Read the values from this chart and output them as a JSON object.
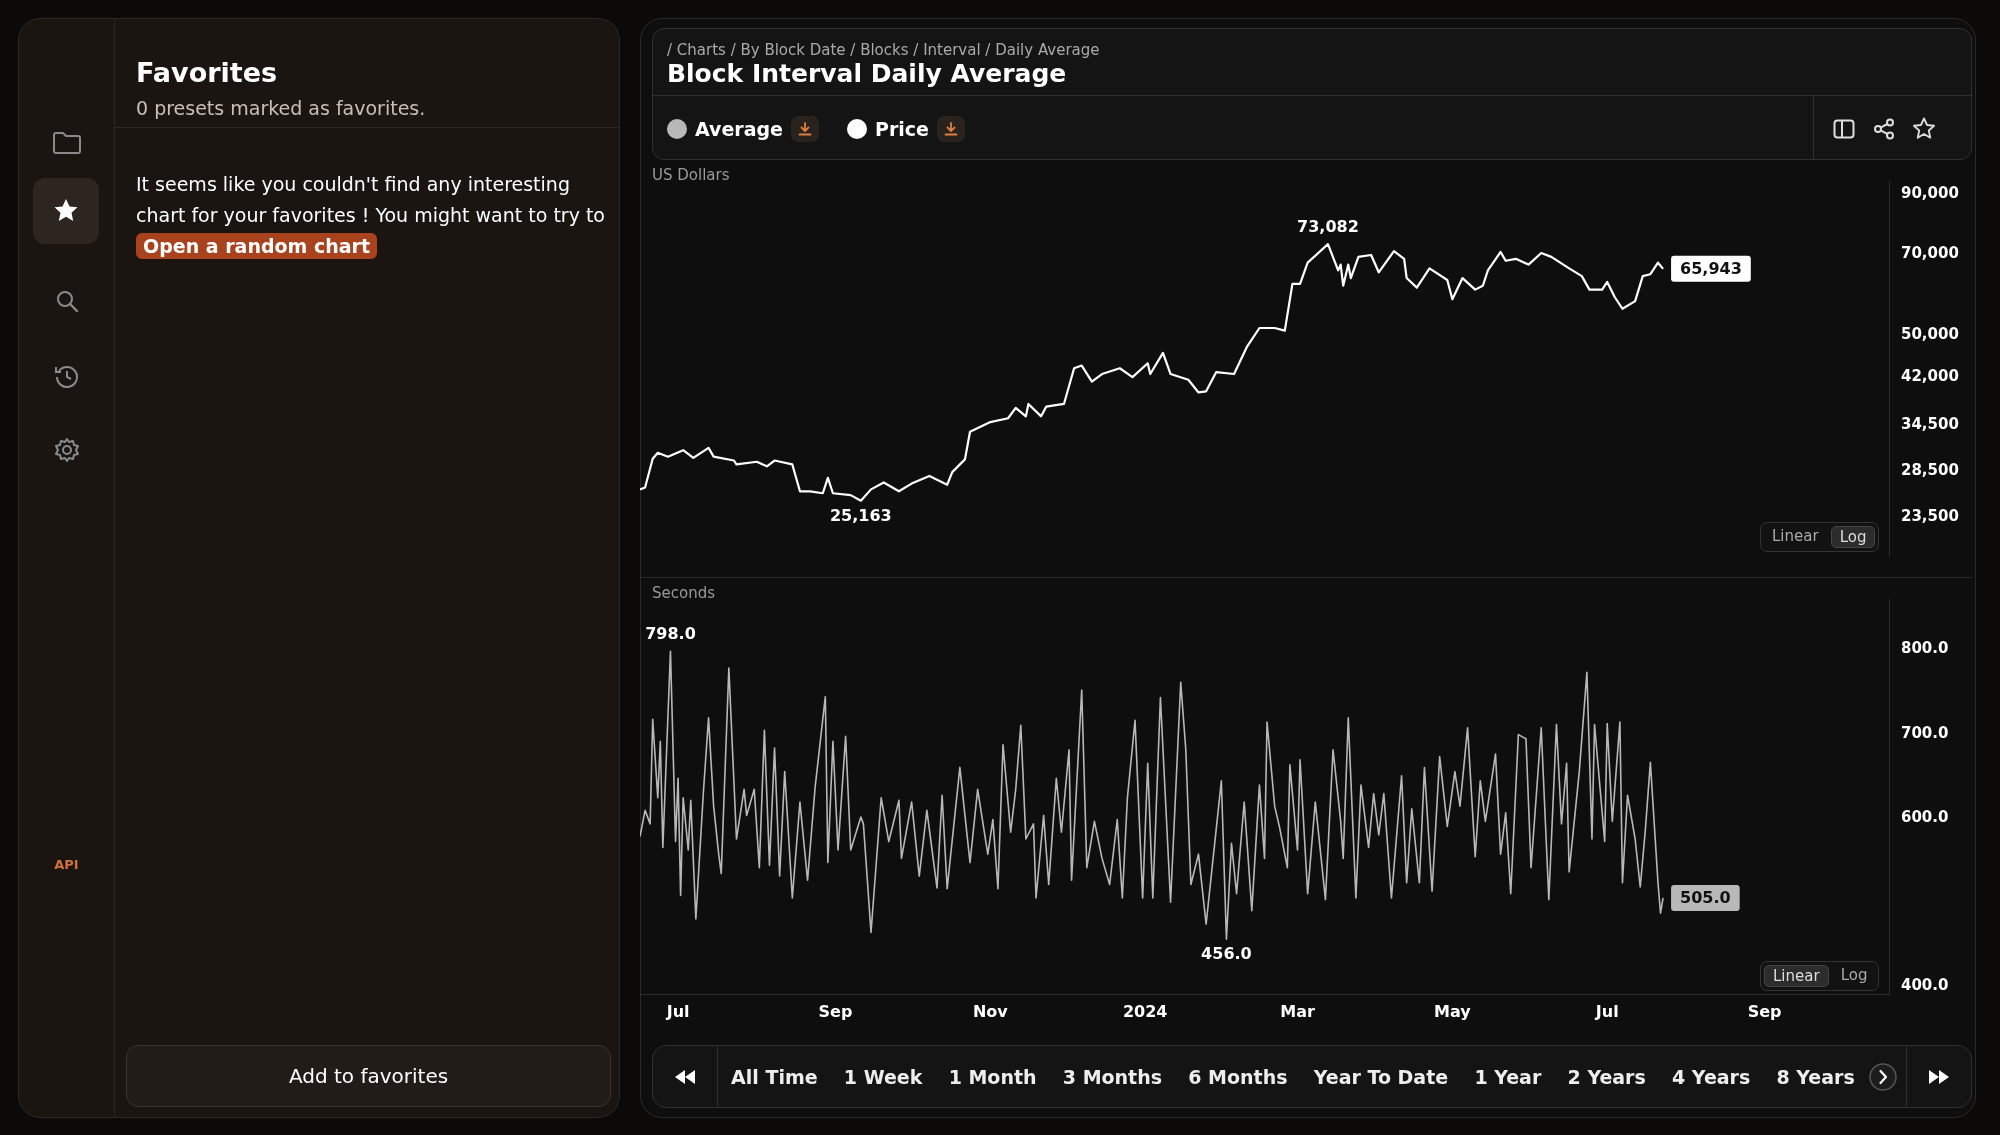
{
  "chart_data": [
    {
      "type": "line",
      "title": "Block Interval Daily Average",
      "subtitle": "/ Charts / By Block Date / Blocks / Interval / Daily Average",
      "ylabel": "US Dollars",
      "legend": "top",
      "log": true,
      "tick_labels": "y",
      "xlim": [
        "2023-06-16",
        "2024-10-20"
      ],
      "ylim": [
        20000,
        95000
      ],
      "yticks": [
        {
          "value": 23500,
          "label": "23,500"
        },
        {
          "value": 28500,
          "label": "28,500"
        },
        {
          "value": 34500,
          "label": "34,500"
        },
        {
          "value": 42000,
          "label": "42,000"
        },
        {
          "value": 50000,
          "label": "50,000"
        },
        {
          "value": 70000,
          "label": "70,000"
        },
        {
          "value": 90000,
          "label": "90,000"
        }
      ],
      "x": [
        "2023-06-16",
        "2023-06-18",
        "2023-06-21",
        "2023-06-23",
        "2023-06-27",
        "2023-07-03",
        "2023-07-07",
        "2023-07-13",
        "2023-07-15",
        "2023-07-23",
        "2023-07-24",
        "2023-08-01",
        "2023-08-05",
        "2023-08-08",
        "2023-08-15",
        "2023-08-18",
        "2023-08-22",
        "2023-08-27",
        "2023-08-29",
        "2023-08-31",
        "2023-09-07",
        "2023-09-11",
        "2023-09-15",
        "2023-09-20",
        "2023-09-26",
        "2023-10-01",
        "2023-10-08",
        "2023-10-15",
        "2023-10-17",
        "2023-10-22",
        "2023-10-24",
        "2023-11-01",
        "2023-11-08",
        "2023-11-11",
        "2023-11-15",
        "2023-11-16",
        "2023-11-21",
        "2023-11-23",
        "2023-11-30",
        "2023-12-04",
        "2023-12-07",
        "2023-12-11",
        "2023-12-15",
        "2023-12-22",
        "2023-12-27",
        "2024-01-02",
        "2024-01-03",
        "2024-01-08",
        "2024-01-11",
        "2024-01-18",
        "2024-01-22",
        "2024-01-25",
        "2024-01-29",
        "2024-02-05",
        "2024-02-10",
        "2024-02-15",
        "2024-02-21",
        "2024-02-25",
        "2024-02-28",
        "2024-03-02",
        "2024-03-05",
        "2024-03-13",
        "2024-03-17",
        "2024-03-18",
        "2024-03-19",
        "2024-03-21",
        "2024-03-22",
        "2024-03-25",
        "2024-03-30",
        "2024-04-02",
        "2024-04-08",
        "2024-04-12",
        "2024-04-13",
        "2024-04-17",
        "2024-04-22",
        "2024-04-29",
        "2024-05-01",
        "2024-05-05",
        "2024-05-10",
        "2024-05-13",
        "2024-05-15",
        "2024-05-20",
        "2024-05-22",
        "2024-05-26",
        "2024-05-31",
        "2024-06-05",
        "2024-06-09",
        "2024-06-16",
        "2024-06-21",
        "2024-06-24",
        "2024-06-29",
        "2024-07-01",
        "2024-07-04",
        "2024-07-07",
        "2024-07-12",
        "2024-07-15",
        "2024-07-18",
        "2024-07-21",
        "2024-07-23"
      ],
      "series": [
        {
          "name": "Price",
          "color": "#ffffff",
          "values": [
            26380,
            26590,
            29970,
            30710,
            30220,
            31050,
            30070,
            31350,
            30220,
            29740,
            29260,
            29590,
            29030,
            29740,
            29260,
            26170,
            26170,
            25960,
            27670,
            25960,
            25760,
            25163,
            26380,
            27150,
            26170,
            27020,
            27890,
            26890,
            28340,
            29880,
            33520,
            34890,
            35450,
            37000,
            35730,
            37620,
            35730,
            37190,
            37620,
            43630,
            44120,
            41270,
            42600,
            43630,
            42060,
            44540,
            42600,
            46510,
            42600,
            41590,
            39460,
            39650,
            42940,
            42600,
            47630,
            51580,
            51580,
            51020,
            61960,
            61960,
            67660,
            73082,
            65540,
            67120,
            61480,
            67120,
            63470,
            69310,
            69860,
            65010,
            70990,
            68750,
            63470,
            60990,
            66070,
            62970,
            58140,
            63470,
            60490,
            61480,
            65540,
            70750,
            68200,
            68750,
            67120,
            70420,
            69310,
            66070,
            63980,
            60490,
            60490,
            62470,
            58610,
            55870,
            57670,
            63980,
            64500,
            67660,
            65943
          ]
        }
      ],
      "annotations": [
        {
          "text": "73,082",
          "x": "2024-03-13",
          "y": 73082
        },
        {
          "text": "25,163",
          "x": "2023-09-11",
          "y": 25163
        },
        {
          "text": "65,943",
          "x": "2024-07-23",
          "y": 65943
        },
        "Linear",
        "Log",
        "Favorites",
        "0 presets marked as favorites.",
        "It seems like you couldn't find any interesting chart for your favorites ! You might want to try to",
        "Open a random chart",
        "Add to favorites",
        "API"
      ]
    },
    {
      "type": "line",
      "ylabel": "Seconds",
      "legend": "top",
      "xlim": [
        "2023-06-16",
        "2024-10-20"
      ],
      "xticks": [
        {
          "value": "2023-07-01",
          "label": "Jul"
        },
        {
          "value": "2023-09-01",
          "label": "Sep"
        },
        {
          "value": "2023-11-01",
          "label": "Nov"
        },
        {
          "value": "2024-01-01",
          "label": "2024"
        },
        {
          "value": "2024-03-01",
          "label": "Mar"
        },
        {
          "value": "2024-05-01",
          "label": "May"
        },
        {
          "value": "2024-07-01",
          "label": "Jul"
        },
        {
          "value": "2024-09-01",
          "label": "Sep"
        }
      ],
      "ylim": [
        390,
        860
      ],
      "yticks": [
        {
          "value": 400,
          "label": "400.0"
        },
        {
          "value": 600,
          "label": "600.0"
        },
        {
          "value": 700,
          "label": "700.0"
        },
        {
          "value": 800,
          "label": "800.0"
        }
      ],
      "x": [
        "2023-06-16",
        "2023-06-18",
        "2023-06-20",
        "2023-06-21",
        "2023-06-23",
        "2023-06-24",
        "2023-06-25",
        "2023-06-28",
        "2023-06-30",
        "2023-07-01",
        "2023-07-02",
        "2023-07-03",
        "2023-07-05",
        "2023-07-06",
        "2023-07-08",
        "2023-07-11",
        "2023-07-13",
        "2023-07-15",
        "2023-07-17",
        "2023-07-18",
        "2023-07-21",
        "2023-07-24",
        "2023-07-27",
        "2023-07-28",
        "2023-07-31",
        "2023-08-02",
        "2023-08-04",
        "2023-08-06",
        "2023-08-08",
        "2023-08-10",
        "2023-08-12",
        "2023-08-15",
        "2023-08-18",
        "2023-08-21",
        "2023-08-24",
        "2023-08-28",
        "2023-08-29",
        "2023-08-31",
        "2023-09-02",
        "2023-09-05",
        "2023-09-07",
        "2023-09-11",
        "2023-09-12",
        "2023-09-15",
        "2023-09-19",
        "2023-09-22",
        "2023-09-26",
        "2023-09-27",
        "2023-10-01",
        "2023-10-04",
        "2023-10-07",
        "2023-10-11",
        "2023-10-13",
        "2023-10-15",
        "2023-10-20",
        "2023-10-22",
        "2023-10-24",
        "2023-10-27",
        "2023-10-31",
        "2023-11-02",
        "2023-11-04",
        "2023-11-06",
        "2023-11-09",
        "2023-11-11",
        "2023-11-13",
        "2023-11-15",
        "2023-11-18",
        "2023-11-19",
        "2023-11-22",
        "2023-11-24",
        "2023-11-27",
        "2023-11-29",
        "2023-12-02",
        "2023-12-03",
        "2023-12-07",
        "2023-12-09",
        "2023-12-12",
        "2023-12-15",
        "2023-12-18",
        "2023-12-21",
        "2023-12-23",
        "2023-12-25",
        "2023-12-28",
        "2023-12-31",
        "2024-01-02",
        "2024-01-04",
        "2024-01-07",
        "2024-01-11",
        "2024-01-15",
        "2024-01-17",
        "2024-01-19",
        "2024-01-22",
        "2024-01-25",
        "2024-01-31",
        "2024-02-02",
        "2024-02-04",
        "2024-02-06",
        "2024-02-09",
        "2024-02-12",
        "2024-02-15",
        "2024-02-17",
        "2024-02-18",
        "2024-02-21",
        "2024-02-23",
        "2024-02-26",
        "2024-02-27",
        "2024-03-01",
        "2024-03-02",
        "2024-03-05",
        "2024-03-08",
        "2024-03-12",
        "2024-03-15",
        "2024-03-18",
        "2024-03-19",
        "2024-03-21",
        "2024-03-24",
        "2024-03-26",
        "2024-03-29",
        "2024-03-31",
        "2024-04-02",
        "2024-04-04",
        "2024-04-07",
        "2024-04-11",
        "2024-04-13",
        "2024-04-15",
        "2024-04-18",
        "2024-04-20",
        "2024-04-23",
        "2024-04-26",
        "2024-04-29",
        "2024-05-02",
        "2024-05-04",
        "2024-05-07",
        "2024-05-10",
        "2024-05-12",
        "2024-05-14",
        "2024-05-18",
        "2024-05-20",
        "2024-05-22",
        "2024-05-24",
        "2024-05-27",
        "2024-05-30",
        "2024-06-01",
        "2024-06-05",
        "2024-06-08",
        "2024-06-11",
        "2024-06-13",
        "2024-06-15",
        "2024-06-16",
        "2024-06-20",
        "2024-06-23",
        "2024-06-25",
        "2024-06-26",
        "2024-06-30",
        "2024-07-01",
        "2024-07-03",
        "2024-07-06",
        "2024-07-07",
        "2024-07-09",
        "2024-07-12",
        "2024-07-14",
        "2024-07-16",
        "2024-07-18",
        "2024-07-21",
        "2024-07-22",
        "2024-07-23"
      ],
      "series": [
        {
          "name": "Average",
          "color": "#b8b8b8",
          "values": [
            578,
            609,
            593,
            717,
            624,
            691,
            565,
            798,
            572,
            647,
            508,
            624,
            562,
            621,
            480,
            632,
            719,
            614,
            557,
            534,
            778,
            575,
            634,
            603,
            634,
            541,
            704,
            544,
            683,
            531,
            655,
            505,
            619,
            526,
            637,
            744,
            547,
            691,
            562,
            697,
            562,
            601,
            593,
            464,
            624,
            572,
            621,
            552,
            619,
            531,
            609,
            517,
            627,
            516,
            660,
            603,
            547,
            634,
            557,
            598,
            516,
            687,
            583,
            634,
            710,
            575,
            593,
            505,
            603,
            521,
            647,
            583,
            681,
            526,
            752,
            541,
            596,
            552,
            521,
            598,
            505,
            624,
            716,
            505,
            665,
            505,
            743,
            500,
            761,
            681,
            521,
            557,
            474,
            644,
            456,
            570,
            510,
            619,
            490,
            639,
            552,
            714,
            614,
            588,
            541,
            663,
            562,
            669,
            510,
            619,
            503,
            681,
            596,
            552,
            719,
            505,
            639,
            565,
            629,
            580,
            629,
            505,
            650,
            523,
            611,
            523,
            660,
            513,
            673,
            590,
            655,
            614,
            707,
            554,
            644,
            596,
            676,
            557,
            606,
            510,
            699,
            694,
            541,
            707,
            503,
            711,
            593,
            665,
            536,
            655,
            773,
            575,
            711,
            572,
            712,
            596,
            714,
            523,
            627,
            575,
            518,
            585,
            666,
            523,
            487,
            505
          ]
        }
      ],
      "annotations": [
        {
          "text": "798.0",
          "x": "2023-06-28",
          "y": 798
        },
        {
          "text": "456.0",
          "x": "2024-02-02",
          "y": 456
        },
        {
          "text": "505.0",
          "x": "2024-07-23",
          "y": 505
        },
        "Linear",
        "Log",
        "All Time",
        "1 Week",
        "1 Month",
        "3 Months",
        "6 Months",
        "Year To Date",
        "1 Year",
        "2 Years",
        "4 Years",
        "8 Years"
      ]
    }
  ]
}
